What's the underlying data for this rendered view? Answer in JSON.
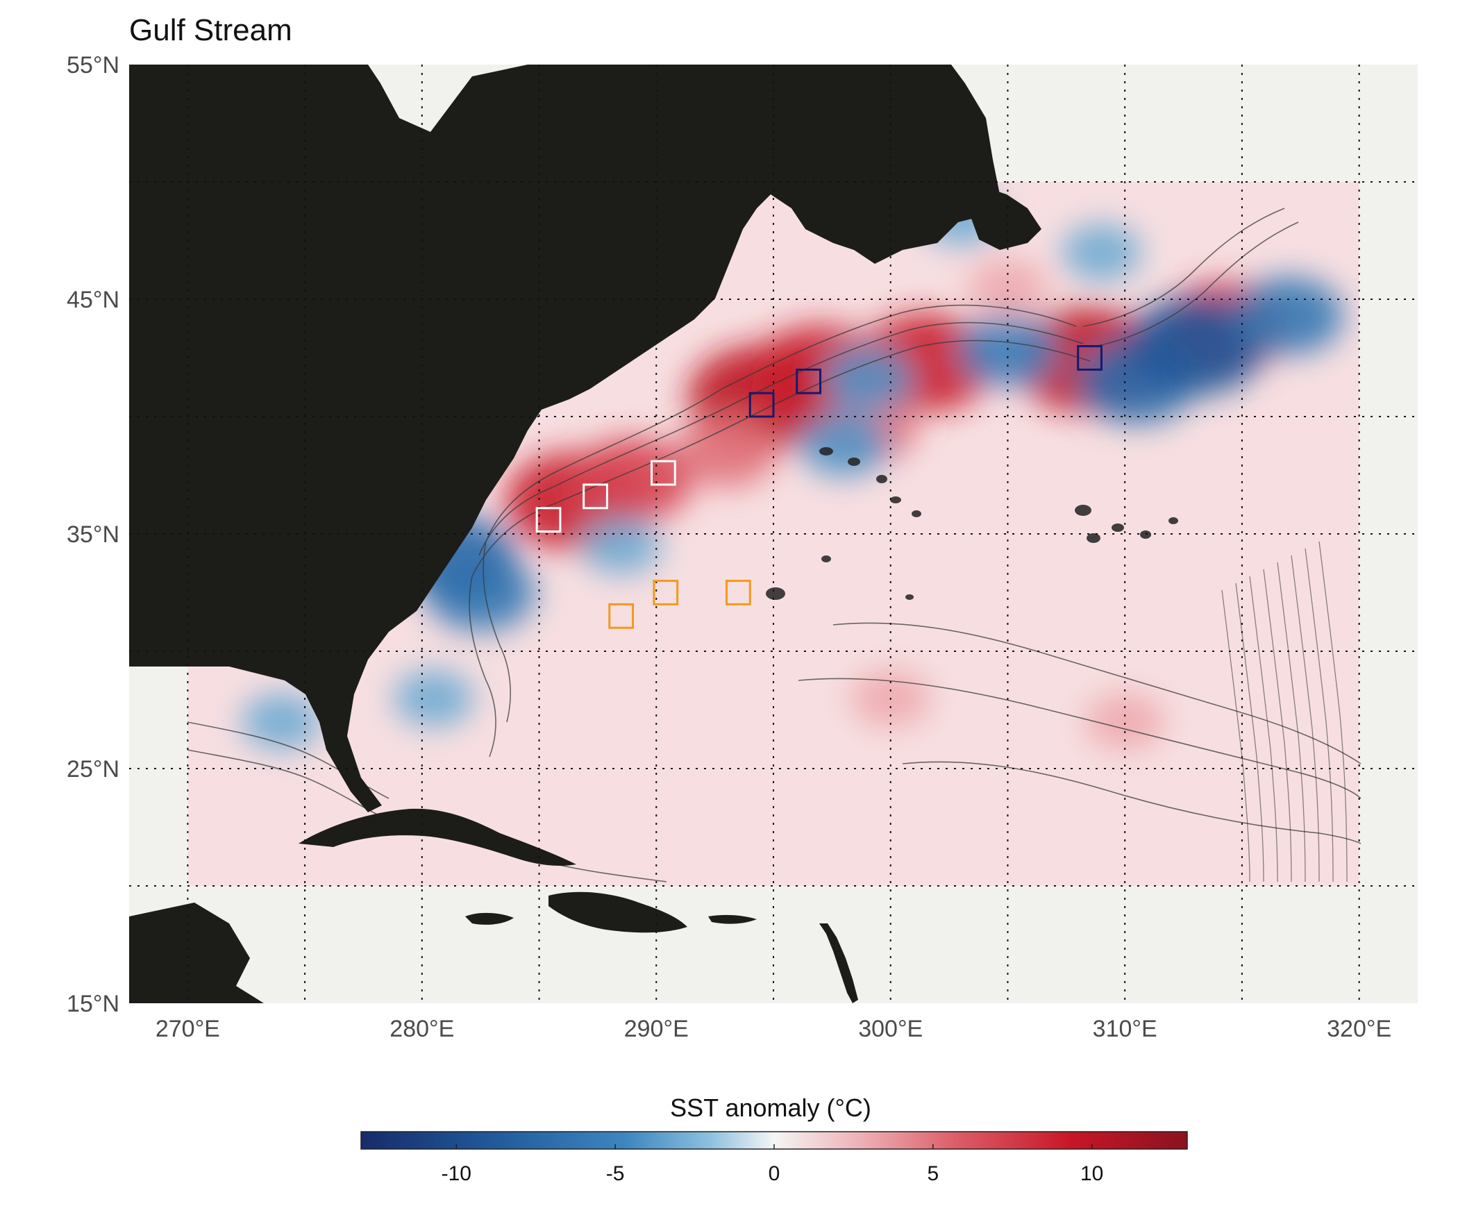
{
  "title": "Gulf Stream",
  "colors": {
    "land": "#1c1d19",
    "no_data": "#f1f2ee",
    "warm": "#cc2233",
    "cool": "#2a6fb0",
    "box_white": "#ffffff",
    "box_navy": "#141a6e",
    "box_orange": "#f29a1a",
    "contour": "#3a3a3a"
  },
  "map": {
    "lon_range": [
      267.5,
      322.5
    ],
    "lat_range": [
      15,
      55
    ],
    "data_extent": {
      "lon": [
        270,
        320
      ],
      "lat": [
        20,
        50
      ]
    },
    "gridlines": {
      "lon": [
        270,
        275,
        280,
        285,
        290,
        295,
        300,
        305,
        310,
        315,
        320
      ],
      "lat": [
        20,
        25,
        30,
        35,
        40,
        45,
        50
      ],
      "style": "dotted"
    },
    "lon_ticks": [
      {
        "value": 270,
        "label": "270°E"
      },
      {
        "value": 280,
        "label": "280°E"
      },
      {
        "value": 290,
        "label": "290°E"
      },
      {
        "value": 300,
        "label": "300°E"
      },
      {
        "value": 310,
        "label": "310°E"
      },
      {
        "value": 320,
        "label": "320°E"
      }
    ],
    "lat_ticks": [
      {
        "value": 55,
        "label": "55°N"
      },
      {
        "value": 45,
        "label": "45°N"
      },
      {
        "value": 35,
        "label": "35°N"
      },
      {
        "value": 25,
        "label": "25°N"
      },
      {
        "value": 15,
        "label": "15°N"
      }
    ],
    "boxes": [
      {
        "group": "white",
        "lon": 285.4,
        "lat": 35.6
      },
      {
        "group": "white",
        "lon": 287.4,
        "lat": 36.6
      },
      {
        "group": "white",
        "lon": 290.3,
        "lat": 37.6
      },
      {
        "group": "orange",
        "lon": 288.5,
        "lat": 31.5
      },
      {
        "group": "orange",
        "lon": 290.4,
        "lat": 32.5
      },
      {
        "group": "orange",
        "lon": 293.5,
        "lat": 32.5
      },
      {
        "group": "navy",
        "lon": 294.5,
        "lat": 40.5
      },
      {
        "group": "navy",
        "lon": 296.5,
        "lat": 41.5
      },
      {
        "group": "navy",
        "lon": 308.5,
        "lat": 42.5
      }
    ],
    "anomaly_features": [
      {
        "lon": 286.5,
        "lat": 36.4,
        "value": 9
      },
      {
        "lon": 289,
        "lat": 37.3,
        "value": 7
      },
      {
        "lon": 294.5,
        "lat": 40.8,
        "value": 10
      },
      {
        "lon": 297,
        "lat": 41.8,
        "value": 9
      },
      {
        "lon": 301.5,
        "lat": 42.3,
        "value": 9
      },
      {
        "lon": 308.4,
        "lat": 42.4,
        "value": 10
      },
      {
        "lon": 314.2,
        "lat": 43.8,
        "value": 8
      },
      {
        "lon": 299,
        "lat": 39.5,
        "value": 5
      },
      {
        "lon": 293,
        "lat": 38.5,
        "value": 5
      },
      {
        "lon": 310.5,
        "lat": 41.5,
        "value": -7
      },
      {
        "lon": 313,
        "lat": 43,
        "value": -9
      },
      {
        "lon": 317,
        "lat": 44.3,
        "value": -6
      },
      {
        "lon": 305,
        "lat": 42.8,
        "value": -5
      },
      {
        "lon": 299,
        "lat": 41.6,
        "value": -4
      },
      {
        "lon": 298,
        "lat": 38.8,
        "value": -4
      },
      {
        "lon": 282.5,
        "lat": 32.5,
        "value": -6
      },
      {
        "lon": 281.5,
        "lat": 34,
        "value": -7
      },
      {
        "lon": 288.5,
        "lat": 34.5,
        "value": -3
      },
      {
        "lon": 280.5,
        "lat": 28,
        "value": -3
      },
      {
        "lon": 274,
        "lat": 27,
        "value": -3
      },
      {
        "lon": 303,
        "lat": 48.5,
        "value": -3
      },
      {
        "lon": 309,
        "lat": 47,
        "value": -3
      },
      {
        "lon": 305,
        "lat": 45.5,
        "value": 3
      },
      {
        "lon": 300,
        "lat": 28,
        "value": 3
      },
      {
        "lon": 310,
        "lat": 27,
        "value": 3
      }
    ]
  },
  "colorbar": {
    "label": "SST anomaly (°C)",
    "range": [
      -13,
      13
    ],
    "ticks": [
      {
        "value": -10,
        "label": "-10"
      },
      {
        "value": -5,
        "label": "-5"
      },
      {
        "value": 0,
        "label": "0"
      },
      {
        "value": 5,
        "label": "5"
      },
      {
        "value": 10,
        "label": "10"
      }
    ]
  }
}
